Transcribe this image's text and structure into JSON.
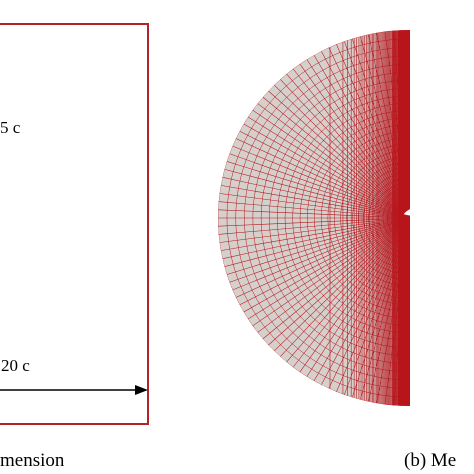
{
  "panel_a": {
    "dim_vertical": "5 c",
    "dim_horizontal": "20 c",
    "caption": "mension"
  },
  "panel_b": {
    "caption": "(b) Me"
  },
  "colors": {
    "frame": "#b1242a",
    "mesh_line": "#b5161c",
    "mesh_bg": "#d6d0cd",
    "mesh_dense": "#b8151b",
    "airfoil": "#ffffff",
    "arrow": "#000000"
  }
}
